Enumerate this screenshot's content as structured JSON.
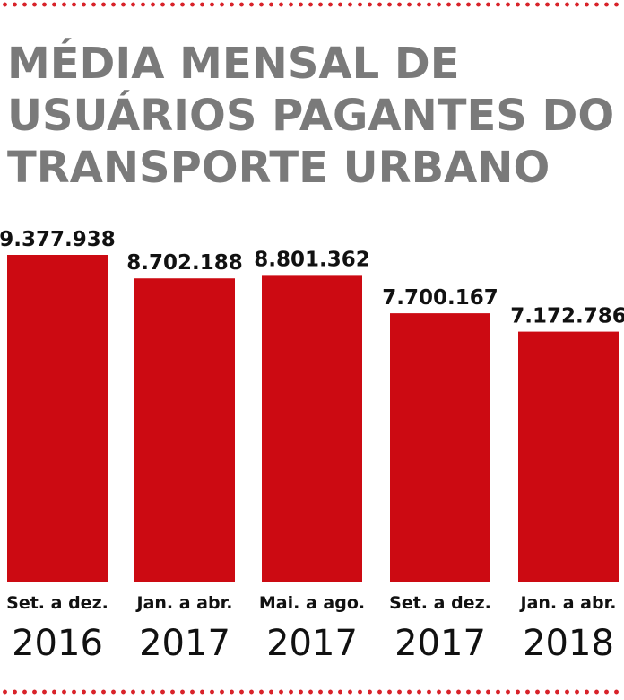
{
  "colors": {
    "bar": "#cc0a12",
    "dots": "#d8232a",
    "title": "#7a7a7a",
    "text": "#111111"
  },
  "title_lines": [
    "MÉDIA MENSAL DE",
    "USUÁRIOS PAGANTES DO",
    "TRANSPORTE URBANO"
  ],
  "chart_data": {
    "type": "bar",
    "title": "MÉDIA MENSAL DE USUÁRIOS PAGANTES DO TRANSPORTE URBANO",
    "categories": [
      "Set. a dez. 2016",
      "Jan. a abr. 2017",
      "Mai. a ago. 2017",
      "Set. a dez. 2017",
      "Jan. a abr. 2018"
    ],
    "period_labels": [
      "Set. a dez.",
      "Jan. a abr.",
      "Mai. a ago.",
      "Set. a dez.",
      "Jan. a abr."
    ],
    "year_labels": [
      "2016",
      "2017",
      "2017",
      "2017",
      "2018"
    ],
    "values": [
      9377938,
      8702188,
      8801362,
      7700167,
      7172786
    ],
    "value_labels": [
      "9.377.938",
      "8.702.188",
      "8.801.362",
      "7.700.167",
      "7.172.786"
    ],
    "ylim": [
      0,
      9377938
    ],
    "xlabel": "",
    "ylabel": "",
    "grid": false
  }
}
